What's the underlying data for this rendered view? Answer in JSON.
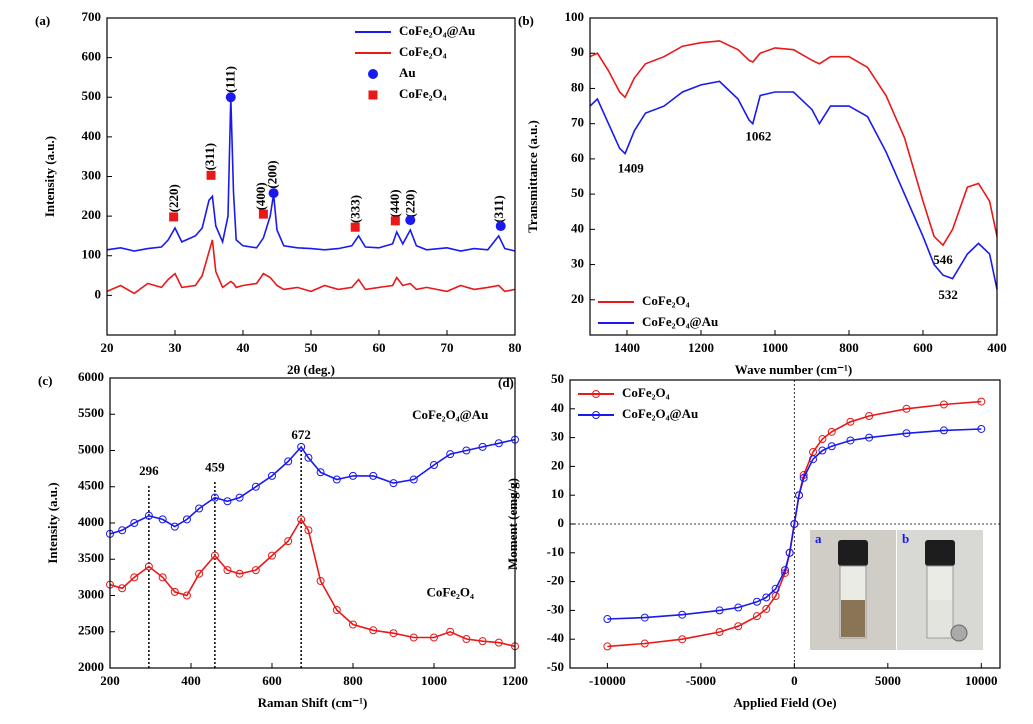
{
  "chart_data": [
    {
      "type": "line",
      "panel_label": "(a)",
      "x_label": "2θ (deg.)",
      "y_label": "Intensity (a.u.)",
      "xlim": [
        20,
        80
      ],
      "ylim": [
        -100,
        700
      ],
      "xticks": [
        20,
        30,
        40,
        50,
        60,
        70,
        80
      ],
      "yticks": [
        0,
        100,
        200,
        300,
        400,
        500,
        600,
        700
      ],
      "legend": "upper right",
      "vertical_annotations": true,
      "series": [
        {
          "name": "CoFe₂O₄@Au",
          "color": "#1a1af0",
          "mode": "line",
          "x": [
            20,
            22,
            24,
            26,
            28,
            29,
            30,
            31,
            33,
            34,
            35,
            35.5,
            36,
            37,
            37.8,
            38.2,
            38.6,
            39,
            40,
            42,
            43,
            44,
            44.5,
            45,
            46,
            48,
            50,
            52,
            54,
            56,
            57,
            58,
            60,
            62,
            62.6,
            63.5,
            64.6,
            65.5,
            67,
            70,
            72,
            74,
            76,
            77.6,
            78.5,
            80
          ],
          "values": [
            115,
            120,
            112,
            118,
            122,
            140,
            170,
            135,
            150,
            170,
            240,
            250,
            175,
            135,
            200,
            500,
            260,
            140,
            125,
            120,
            145,
            200,
            255,
            165,
            125,
            120,
            118,
            115,
            118,
            125,
            150,
            122,
            120,
            130,
            160,
            130,
            165,
            125,
            115,
            120,
            112,
            118,
            115,
            150,
            118,
            112
          ]
        },
        {
          "name": "CoFe₂O₄",
          "color": "#e81919",
          "mode": "line",
          "x": [
            20,
            22,
            24,
            26,
            28,
            29,
            30,
            31,
            33,
            34,
            35,
            35.5,
            36,
            37,
            37.8,
            38.2,
            38.6,
            39,
            40,
            42,
            43,
            44,
            44.5,
            45,
            46,
            48,
            50,
            52,
            54,
            56,
            57,
            58,
            60,
            62,
            62.6,
            63.5,
            64.6,
            65.5,
            67,
            70,
            72,
            74,
            76,
            77.6,
            78.5,
            80
          ],
          "values": [
            10,
            25,
            5,
            30,
            20,
            40,
            55,
            20,
            25,
            50,
            110,
            140,
            60,
            20,
            30,
            35,
            30,
            20,
            25,
            30,
            55,
            45,
            35,
            25,
            15,
            20,
            10,
            25,
            15,
            20,
            40,
            15,
            20,
            25,
            45,
            25,
            30,
            15,
            20,
            10,
            25,
            15,
            20,
            25,
            10,
            15
          ]
        },
        {
          "name": "Au",
          "color": "#1a1af0",
          "mode": "markers",
          "marker": "circle",
          "x": [
            38.2,
            44.5,
            64.6,
            77.9
          ],
          "values": [
            500,
            258,
            190,
            175
          ]
        },
        {
          "name": "CoFe₂O₄",
          "color": "#e81919",
          "mode": "markers",
          "marker": "square",
          "x": [
            29.8,
            35.3,
            43,
            56.5,
            62.4
          ],
          "values": [
            198,
            303,
            205,
            172,
            188
          ]
        }
      ],
      "annotations": [
        {
          "text": "(220)",
          "x": 30,
          "y": 245
        },
        {
          "text": "(311)",
          "x": 35.3,
          "y": 350
        },
        {
          "text": "(111)",
          "x": 38.3,
          "y": 545
        },
        {
          "text": "(400)",
          "x": 42.8,
          "y": 250
        },
        {
          "text": "(200)",
          "x": 44.5,
          "y": 305
        },
        {
          "text": "(333)",
          "x": 56.7,
          "y": 218
        },
        {
          "text": "(440)",
          "x": 62.5,
          "y": 232
        },
        {
          "text": "(220)",
          "x": 64.8,
          "y": 232
        },
        {
          "text": "(311)",
          "x": 77.8,
          "y": 218
        }
      ]
    },
    {
      "type": "line",
      "panel_label": "(b)",
      "x_label": "Wave number (cm⁻¹)",
      "y_label": "Transmittance (a.u.)",
      "xlim": [
        1500,
        400
      ],
      "ylim": [
        10,
        100
      ],
      "xticks": [
        1400,
        1200,
        1000,
        800,
        600,
        400
      ],
      "yticks": [
        20,
        30,
        40,
        50,
        60,
        70,
        80,
        90,
        100
      ],
      "legend": "lower left",
      "x": [
        1500,
        1480,
        1450,
        1420,
        1405,
        1380,
        1350,
        1300,
        1250,
        1200,
        1150,
        1100,
        1070,
        1060,
        1040,
        1000,
        950,
        900,
        880,
        850,
        800,
        750,
        700,
        650,
        600,
        570,
        546,
        520,
        480,
        450,
        420,
        400
      ],
      "series": [
        {
          "name": "CoFe₂O₄",
          "color": "#e81919",
          "mode": "line",
          "values": [
            89,
            90,
            85,
            79,
            77.5,
            83,
            87,
            89,
            92,
            93,
            93.5,
            91,
            88,
            87.5,
            90,
            91.5,
            91,
            88,
            87,
            89,
            89,
            86,
            78,
            66,
            48,
            38,
            35.5,
            40,
            52,
            53,
            48,
            38
          ]
        },
        {
          "name": "CoFe₂O₄@Au",
          "color": "#1a1af0",
          "mode": "line",
          "values": [
            75,
            77,
            70,
            63,
            61.5,
            68,
            73,
            75,
            79,
            81,
            82,
            77,
            71,
            70,
            78,
            79,
            79,
            74,
            70,
            75,
            75,
            72,
            62,
            50,
            38,
            30,
            27,
            26,
            33,
            36,
            33,
            23
          ]
        }
      ],
      "annotations": [
        {
          "text": "1409",
          "x": 1390,
          "y": 57
        },
        {
          "text": "1062",
          "x": 1045,
          "y": 66
        },
        {
          "text": "546",
          "x": 546,
          "y": 31
        },
        {
          "text": "532",
          "x": 532,
          "y": 21
        }
      ]
    },
    {
      "type": "line",
      "panel_label": "(c)",
      "x_label": "Raman Shift (cm⁻¹)",
      "y_label": "Intensity (a.u.)",
      "xlim": [
        200,
        1200
      ],
      "ylim": [
        2000,
        6000
      ],
      "xticks": [
        200,
        400,
        600,
        800,
        1000,
        1200
      ],
      "yticks": [
        2000,
        2500,
        3000,
        3500,
        4000,
        4500,
        5000,
        5500,
        6000
      ],
      "inline_series_labels": true,
      "annotation_guides": true,
      "x": [
        200,
        230,
        260,
        296,
        330,
        360,
        390,
        420,
        459,
        490,
        520,
        560,
        600,
        640,
        672,
        690,
        720,
        760,
        800,
        850,
        900,
        950,
        1000,
        1040,
        1080,
        1120,
        1160,
        1200
      ],
      "series": [
        {
          "name": "CoFe₂O₄",
          "color": "#e81919",
          "mode": "line+markers",
          "marker": "open-circle",
          "values": [
            3150,
            3100,
            3250,
            3400,
            3250,
            3050,
            3000,
            3300,
            3550,
            3350,
            3300,
            3350,
            3550,
            3750,
            4050,
            3900,
            3200,
            2800,
            2600,
            2520,
            2480,
            2420,
            2420,
            2500,
            2400,
            2370,
            2350,
            2300
          ]
        },
        {
          "name": "CoFe₂O₄@Au",
          "color": "#1a1af0",
          "mode": "line+markers",
          "marker": "open-circle",
          "values": [
            3850,
            3900,
            4000,
            4100,
            4050,
            3950,
            4050,
            4200,
            4350,
            4300,
            4350,
            4500,
            4650,
            4850,
            5050,
            4900,
            4700,
            4600,
            4650,
            4650,
            4550,
            4600,
            4800,
            4950,
            5000,
            5050,
            5100,
            5150
          ]
        }
      ],
      "annotations": [
        {
          "text": "296",
          "x": 296,
          "y": 4700
        },
        {
          "text": "459",
          "x": 459,
          "y": 4750
        },
        {
          "text": "672",
          "x": 672,
          "y": 5200
        }
      ]
    },
    {
      "type": "line",
      "panel_label": "(d)",
      "x_label": "Applied Field (Oe)",
      "y_label": "Moment (emg/g)",
      "xlim": [
        -12000,
        11000
      ],
      "ylim": [
        -50,
        50
      ],
      "xticks": [
        -10000,
        -5000,
        0,
        5000,
        10000
      ],
      "yticks": [
        -50,
        -40,
        -30,
        -20,
        -10,
        0,
        10,
        20,
        30,
        40,
        50
      ],
      "legend": "upper left",
      "zero_lines": true,
      "inset_labels": [
        "a",
        "b"
      ],
      "x": [
        -10000,
        -8000,
        -6000,
        -4000,
        -3000,
        -2000,
        -1500,
        -1000,
        -500,
        -250,
        0,
        250,
        500,
        1000,
        1500,
        2000,
        3000,
        4000,
        6000,
        8000,
        10000
      ],
      "series": [
        {
          "name": "CoFe₂O₄",
          "color": "#e81919",
          "mode": "line+markers",
          "marker": "open-circle",
          "values": [
            -42.5,
            -41.5,
            -40,
            -37.5,
            -35.5,
            -32,
            -29.5,
            -25,
            -17,
            -10,
            0,
            10,
            17,
            25,
            29.5,
            32,
            35.5,
            37.5,
            40,
            41.5,
            42.5
          ]
        },
        {
          "name": "CoFe₂O₄@Au",
          "color": "#1a1af0",
          "mode": "line+markers",
          "marker": "open-circle",
          "values": [
            -33,
            -32.5,
            -31.5,
            -30,
            -29,
            -27,
            -25.5,
            -22.5,
            -16,
            -10,
            0,
            10,
            16,
            22.5,
            25.5,
            27,
            29,
            30,
            31.5,
            32.5,
            33
          ]
        }
      ]
    }
  ]
}
